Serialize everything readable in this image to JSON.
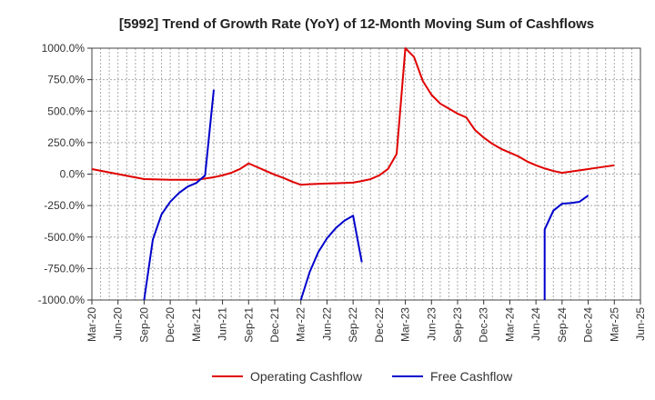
{
  "chart_data": {
    "type": "line",
    "title": "[5992]  Trend of Growth Rate (YoY) of 12-Month Moving Sum of Cashflows",
    "xlabel": "",
    "ylabel": "",
    "ylim": [
      -1000,
      1000
    ],
    "y_ticks": [
      "1000.0%",
      "750.0%",
      "500.0%",
      "250.0%",
      "0.0%",
      "-250.0%",
      "-500.0%",
      "-750.0%",
      "-1000.0%"
    ],
    "y_tick_values": [
      1000,
      750,
      500,
      250,
      0,
      -250,
      -500,
      -750,
      -1000
    ],
    "x_ticks": [
      "Mar-20",
      "Jun-20",
      "Sep-20",
      "Dec-20",
      "Mar-21",
      "Jun-21",
      "Sep-21",
      "Dec-21",
      "Mar-22",
      "Jun-22",
      "Sep-22",
      "Dec-22",
      "Mar-23",
      "Jun-23",
      "Sep-23",
      "Dec-23",
      "Mar-24",
      "Jun-24",
      "Sep-24",
      "Dec-24",
      "Mar-25",
      "Jun-25"
    ],
    "grid": true,
    "legend_position": "bottom",
    "series": [
      {
        "name": "Operating Cashflow",
        "color": "#e00000",
        "points": [
          [
            "Mar-20",
            40
          ],
          [
            "Jun-20",
            0
          ],
          [
            "Sep-20",
            -40
          ],
          [
            "Dec-20",
            -45
          ],
          [
            "Mar-21",
            -45
          ],
          [
            "Apr-21",
            -35
          ],
          [
            "May-21",
            -25
          ],
          [
            "Jun-21",
            -10
          ],
          [
            "Jul-21",
            10
          ],
          [
            "Aug-21",
            40
          ],
          [
            "Sep-21",
            85
          ],
          [
            "Oct-21",
            55
          ],
          [
            "Nov-21",
            25
          ],
          [
            "Dec-21",
            -5
          ],
          [
            "Jan-22",
            -30
          ],
          [
            "Feb-22",
            -60
          ],
          [
            "Mar-22",
            -85
          ],
          [
            "Apr-22",
            -80
          ],
          [
            "May-22",
            -78
          ],
          [
            "Jun-22",
            -75
          ],
          [
            "Jul-22",
            -73
          ],
          [
            "Aug-22",
            -70
          ],
          [
            "Sep-22",
            -68
          ],
          [
            "Oct-22",
            -55
          ],
          [
            "Nov-22",
            -40
          ],
          [
            "Dec-22",
            -10
          ],
          [
            "Jan-23",
            40
          ],
          [
            "Feb-23",
            160
          ],
          [
            "Mar-23",
            1000
          ],
          [
            "Apr-23",
            930
          ],
          [
            "May-23",
            740
          ],
          [
            "Jun-23",
            630
          ],
          [
            "Jul-23",
            560
          ],
          [
            "Aug-23",
            520
          ],
          [
            "Sep-23",
            480
          ],
          [
            "Oct-23",
            450
          ],
          [
            "Nov-23",
            350
          ],
          [
            "Dec-23",
            290
          ],
          [
            "Jan-24",
            240
          ],
          [
            "Feb-24",
            200
          ],
          [
            "Mar-24",
            170
          ],
          [
            "Apr-24",
            140
          ],
          [
            "May-24",
            100
          ],
          [
            "Jun-24",
            70
          ],
          [
            "Jul-24",
            45
          ],
          [
            "Aug-24",
            25
          ],
          [
            "Sep-24",
            10
          ],
          [
            "Oct-24",
            20
          ],
          [
            "Nov-24",
            30
          ],
          [
            "Dec-24",
            40
          ],
          [
            "Jan-25",
            50
          ],
          [
            "Feb-25",
            60
          ],
          [
            "Mar-25",
            70
          ]
        ]
      },
      {
        "name": "Free Cashflow",
        "color": "#0000cc",
        "segments": [
          [
            [
              "Sep-20",
              -1000
            ],
            [
              "Oct-20",
              -520
            ],
            [
              "Nov-20",
              -320
            ],
            [
              "Dec-20",
              -220
            ],
            [
              "Jan-21",
              -150
            ],
            [
              "Feb-21",
              -100
            ],
            [
              "Mar-21",
              -70
            ],
            [
              "Apr-21",
              -10
            ],
            [
              "May-21",
              670
            ]
          ],
          [
            [
              "Mar-22",
              -1000
            ],
            [
              "Apr-22",
              -780
            ],
            [
              "May-22",
              -620
            ],
            [
              "Jun-22",
              -510
            ],
            [
              "Jul-22",
              -430
            ],
            [
              "Aug-22",
              -370
            ],
            [
              "Sep-22",
              -330
            ],
            [
              "Oct-22",
              -700
            ]
          ],
          [
            [
              "Jul-24",
              -1000
            ],
            [
              "Jul-24",
              -440
            ],
            [
              "Aug-24",
              -290
            ],
            [
              "Sep-24",
              -235
            ],
            [
              "Oct-24",
              -230
            ],
            [
              "Nov-24",
              -220
            ],
            [
              "Dec-24",
              -170
            ]
          ]
        ]
      }
    ]
  }
}
